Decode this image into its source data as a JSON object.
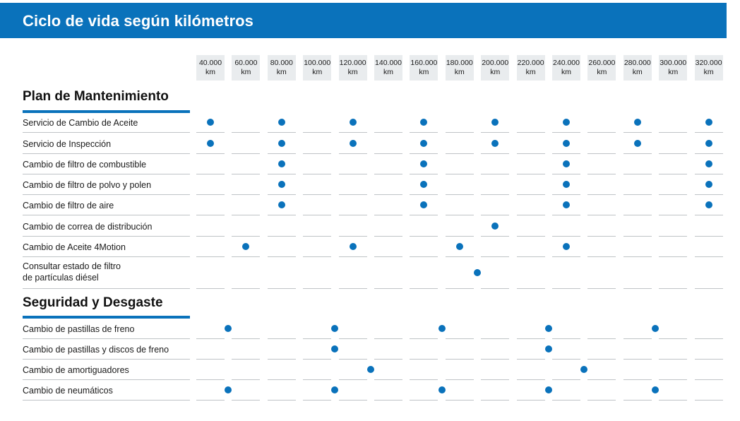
{
  "header": {
    "title": "Ciclo de vida según kilómetros"
  },
  "columns": [
    {
      "km": "40.000",
      "unit": "km"
    },
    {
      "km": "60.000",
      "unit": "km"
    },
    {
      "km": "80.000",
      "unit": "km"
    },
    {
      "km": "100.000",
      "unit": "km"
    },
    {
      "km": "120.000",
      "unit": "km"
    },
    {
      "km": "140.000",
      "unit": "km"
    },
    {
      "km": "160.000",
      "unit": "km"
    },
    {
      "km": "180.000",
      "unit": "km"
    },
    {
      "km": "200.000",
      "unit": "km"
    },
    {
      "km": "220.000",
      "unit": "km"
    },
    {
      "km": "240.000",
      "unit": "km"
    },
    {
      "km": "260.000",
      "unit": "km"
    },
    {
      "km": "280.000",
      "unit": "km"
    },
    {
      "km": "300.000",
      "unit": "km"
    },
    {
      "km": "320.000",
      "unit": "km"
    }
  ],
  "sections": [
    {
      "title": "Plan de Mantenimiento",
      "rows": [
        {
          "label": "Servicio de Cambio de Aceite",
          "marks": [
            0,
            2,
            4,
            6,
            8,
            10,
            12,
            14
          ]
        },
        {
          "label": "Servicio de Inspección",
          "marks": [
            0,
            2,
            4,
            6,
            8,
            10,
            12,
            14
          ]
        },
        {
          "label": "Cambio de filtro de combustible",
          "marks": [
            2,
            6,
            10,
            14
          ]
        },
        {
          "label": "Cambio de filtro de polvo y polen",
          "marks": [
            2,
            6,
            10,
            14
          ]
        },
        {
          "label": "Cambio de filtro de aire",
          "marks": [
            2,
            6,
            10,
            14
          ]
        },
        {
          "label": "Cambio de correa de distribución",
          "marks": [
            8
          ]
        },
        {
          "label": "Cambio de Aceite 4Motion",
          "marks": [
            1,
            4,
            7,
            10
          ]
        },
        {
          "label": "Consultar estado de filtro de partículas diésel",
          "label_lines": [
            "Consultar estado de filtro",
            "de partículas diésel"
          ],
          "marks": [
            7.5
          ]
        }
      ]
    },
    {
      "title": "Seguridad y Desgaste",
      "rows": [
        {
          "label": "Cambio de pastillas de freno",
          "marks": [
            0.5,
            3.5,
            6.5,
            9.5,
            12.5
          ]
        },
        {
          "label": "Cambio de pastillas y discos de freno",
          "marks": [
            3.5,
            9.5
          ]
        },
        {
          "label": "Cambio de amortiguadores",
          "marks": [
            4.5,
            10.5
          ]
        },
        {
          "label": "Cambio de neumáticos",
          "marks": [
            0.5,
            3.5,
            6.5,
            9.5,
            12.5
          ]
        }
      ]
    }
  ]
}
